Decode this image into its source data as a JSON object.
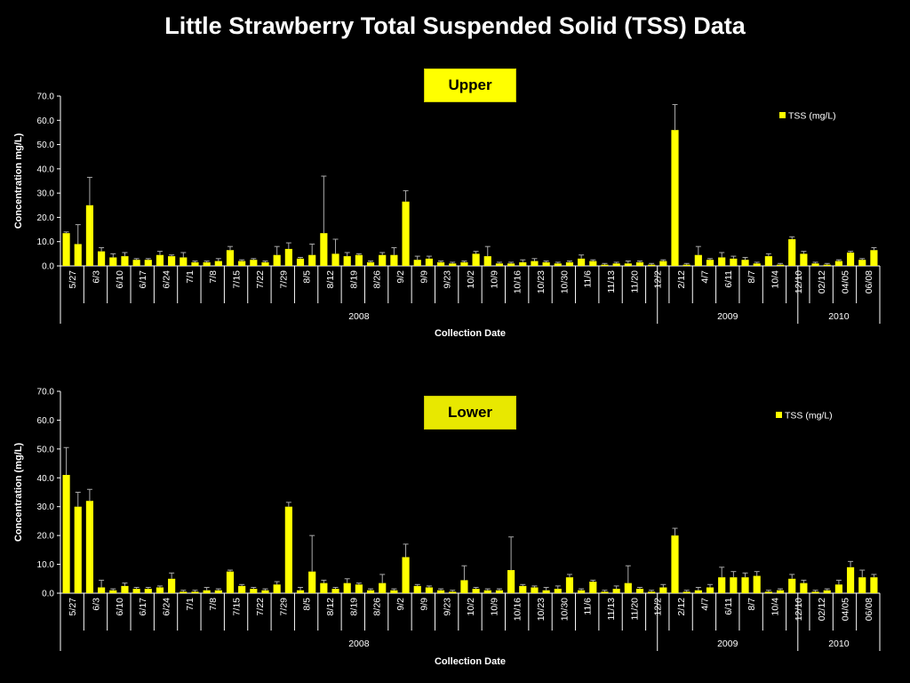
{
  "title": "Little Strawberry Total Suspended Solid (TSS) Data",
  "colors": {
    "background": "#000000",
    "bar": "#ffff00",
    "label_box": "#ffff00",
    "text": "#ffffff"
  },
  "chart_data": [
    {
      "type": "bar",
      "panel_label": "Upper",
      "ylabel": "Concentration mg/L)",
      "xlabel": "Collection Date",
      "ylim": [
        0,
        70
      ],
      "yticks": [
        "0.0",
        "10.0",
        "20.0",
        "30.0",
        "40.0",
        "50.0",
        "60.0",
        "70.0"
      ],
      "legend": {
        "position": "top-right",
        "entries": [
          "TSS (mg/L)"
        ]
      },
      "tick_labels": [
        "5/27",
        "6/3",
        "6/10",
        "6/17",
        "6/24",
        "7/1",
        "7/8",
        "7/15",
        "7/22",
        "7/29",
        "8/5",
        "8/12",
        "8/19",
        "8/26",
        "9/2",
        "9/9",
        "9/23",
        "10/2",
        "10/9",
        "10/16",
        "10/23",
        "10/30",
        "11/6",
        "11/13",
        "11/20",
        "12/2",
        "2/12",
        "4/7",
        "6/11",
        "8/7",
        "10/4",
        "12/10",
        "02/12",
        "04/05",
        "06/08"
      ],
      "year_groups": [
        {
          "label": "2008",
          "count": 51
        },
        {
          "label": "2009",
          "count": 12
        },
        {
          "label": "2010",
          "count": 7
        }
      ],
      "series": [
        {
          "name": "TSS (mg/L)",
          "values": [
            13.5,
            9,
            25,
            6,
            3.5,
            4,
            2.5,
            2.5,
            4.5,
            4,
            3.5,
            1.5,
            1.5,
            2,
            6.5,
            2,
            2.5,
            1.5,
            4.5,
            7,
            3,
            4.5,
            13.5,
            5,
            4,
            4.5,
            1.5,
            4.5,
            4.5,
            26.5,
            2.5,
            3,
            1.5,
            1,
            1.5,
            5,
            4,
            1,
            1,
            1.5,
            2,
            1.5,
            1,
            1.5,
            3,
            2,
            0.5,
            1,
            1,
            1.5,
            0.5,
            2,
            56,
            0.5,
            4.5,
            2.5,
            3.5,
            3,
            2.5,
            1,
            4,
            0.5,
            11,
            5,
            1,
            0.5,
            2,
            5.5,
            2.5,
            6.5
          ],
          "errors": [
            0.5,
            8,
            11.5,
            1.5,
            1.5,
            1.5,
            0.5,
            0.5,
            1.5,
            0.5,
            2,
            0.5,
            0.5,
            1,
            1.5,
            0.5,
            0.5,
            0.5,
            3.5,
            2.5,
            0.5,
            4.5,
            23.5,
            6,
            1.5,
            0.5,
            0.5,
            1,
            3,
            4.5,
            1.5,
            1,
            0.5,
            0.5,
            0.5,
            1,
            4,
            0.5,
            0.5,
            1,
            1,
            0.5,
            0.5,
            0.5,
            1.5,
            0.5,
            0.5,
            0.5,
            1,
            0.5,
            0.5,
            0.5,
            10.5,
            0.5,
            3.5,
            0.5,
            2,
            1,
            1,
            0.5,
            1,
            0.5,
            1,
            1,
            0.5,
            0.5,
            0.5,
            0.5,
            0.5,
            1
          ]
        }
      ]
    },
    {
      "type": "bar",
      "panel_label": "Lower",
      "ylabel": "Concentration (mg/L)",
      "xlabel": "Collection Date",
      "ylim": [
        0,
        70
      ],
      "yticks": [
        "0.0",
        "10.0",
        "20.0",
        "30.0",
        "40.0",
        "50.0",
        "60.0",
        "70.0"
      ],
      "legend": {
        "position": "top-right",
        "entries": [
          "TSS (mg/L)"
        ]
      },
      "tick_labels": [
        "5/27",
        "6/3",
        "6/10",
        "6/17",
        "6/24",
        "7/1",
        "7/8",
        "7/15",
        "7/22",
        "7/29",
        "8/5",
        "8/12",
        "8/19",
        "8/26",
        "9/2",
        "9/9",
        "9/23",
        "10/2",
        "10/9",
        "10/16",
        "10/23",
        "10/30",
        "11/6",
        "11/13",
        "11/20",
        "12/2",
        "2/12",
        "4/7",
        "6/11",
        "8/7",
        "10/4",
        "12/10",
        "02/12",
        "04/05",
        "06/08"
      ],
      "year_groups": [
        {
          "label": "2008",
          "count": 51
        },
        {
          "label": "2009",
          "count": 12
        },
        {
          "label": "2010",
          "count": 7
        }
      ],
      "series": [
        {
          "name": "TSS (mg/L)",
          "values": [
            41,
            30,
            32,
            2,
            1,
            2.5,
            1.5,
            1.5,
            2,
            5,
            0.5,
            0.5,
            1,
            1,
            7.5,
            2.5,
            1.5,
            1,
            3,
            30,
            1,
            7.5,
            3.5,
            1.5,
            3.5,
            3,
            1,
            3.5,
            1,
            12.5,
            2.5,
            2,
            1,
            0.5,
            4.5,
            1.5,
            1,
            1,
            8,
            2.5,
            2,
            1,
            1.5,
            5.5,
            1,
            4,
            0.5,
            1.5,
            3.5,
            1.5,
            0.5,
            2,
            20,
            0.5,
            1,
            2,
            5.5,
            5.5,
            5.5,
            6,
            0.5,
            1,
            5,
            3.5,
            0.5,
            1,
            3,
            9,
            5.5,
            5.5
          ],
          "errors": [
            9.5,
            5,
            4,
            2.5,
            0.5,
            1,
            0.5,
            0.5,
            0.5,
            2,
            0.5,
            0.5,
            1,
            0.5,
            0.5,
            0.5,
            0.5,
            0.5,
            1,
            1.5,
            1,
            12.5,
            1,
            0.5,
            1.5,
            0.5,
            0.5,
            3,
            0.5,
            4.5,
            0.5,
            0.5,
            0.5,
            0.5,
            5,
            0.5,
            0.5,
            0.5,
            11.5,
            0.5,
            0.5,
            1,
            1,
            1,
            0.5,
            0.5,
            0.5,
            1,
            6,
            0.5,
            0.5,
            1,
            2.5,
            0.5,
            1,
            1,
            3.5,
            2,
            1.5,
            1.5,
            0.5,
            0.5,
            1.5,
            1,
            0.5,
            0.5,
            1.5,
            2,
            2.5,
            1
          ]
        }
      ]
    }
  ]
}
